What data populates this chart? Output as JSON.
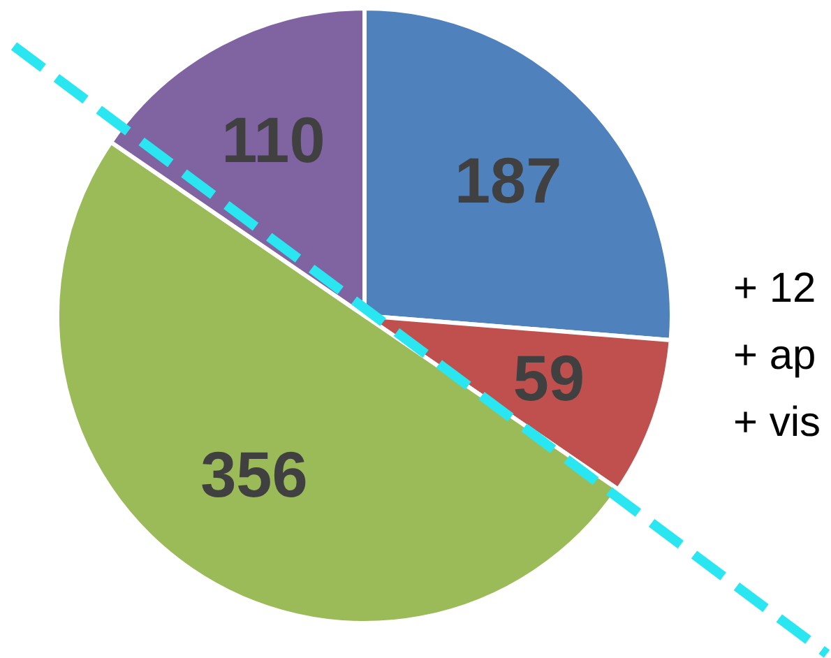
{
  "chart_data": {
    "type": "pie",
    "categories": [
      null,
      null,
      null,
      null
    ],
    "values": [
      187,
      59,
      356,
      110
    ],
    "colors": [
      "#4f81bd",
      "#c0504d",
      "#9bbb59",
      "#8064a2"
    ],
    "data_labels": true,
    "annotations": [
      "+ 12",
      "+ ap",
      "+ vis"
    ]
  }
}
